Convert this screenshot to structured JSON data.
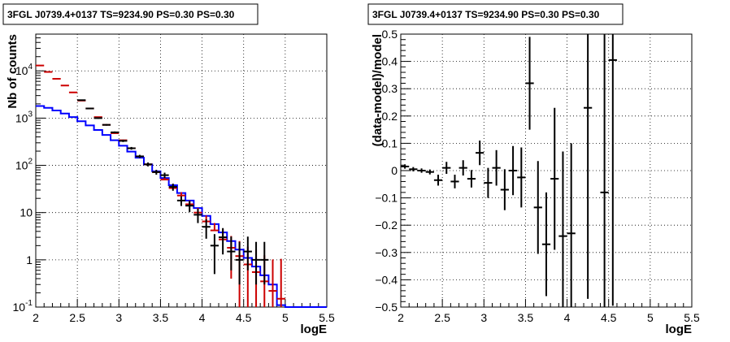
{
  "chart_data": [
    {
      "type": "line",
      "title": "3FGL J0739.4+0137 TS=9234.90 PS=0.30 PS=0.30",
      "xlabel": "logE",
      "ylabel": "Nb of counts",
      "xlim": [
        2,
        5.5
      ],
      "ylim": [
        0.1,
        60000
      ],
      "yscale": "log",
      "grid": true,
      "x_ticks": [
        "2",
        "2.5",
        "3",
        "3.5",
        "4",
        "4.5",
        "5",
        "5.5"
      ],
      "y_ticks": [
        {
          "base": "10",
          "exp": "-1",
          "value": 0.1
        },
        {
          "base": "1",
          "exp": "",
          "value": 1
        },
        {
          "base": "10",
          "exp": "",
          "value": 10
        },
        {
          "base": "10",
          "exp": "2",
          "value": 100
        },
        {
          "base": "10",
          "exp": "3",
          "value": 1000
        },
        {
          "base": "10",
          "exp": "4",
          "value": 10000
        }
      ],
      "bin_width": 0.1,
      "series": [
        {
          "color": "#0000ff",
          "style": "histogram",
          "x": [
            2.05,
            2.15,
            2.25,
            2.35,
            2.45,
            2.55,
            2.65,
            2.75,
            2.85,
            2.95,
            3.05,
            3.15,
            3.25,
            3.35,
            3.45,
            3.55,
            3.65,
            3.75,
            3.85,
            3.95,
            4.05,
            4.15,
            4.25,
            4.35,
            4.45,
            4.55,
            4.65,
            4.75,
            4.85,
            4.95,
            5.05,
            5.15,
            5.25,
            5.35,
            5.45
          ],
          "y": [
            1800,
            1650,
            1450,
            1250,
            1050,
            860,
            700,
            560,
            440,
            340,
            260,
            195,
            145,
            105,
            75,
            54,
            38,
            26,
            18,
            12.5,
            8.5,
            5.7,
            3.8,
            2.5,
            1.65,
            1.1,
            0.72,
            0.47,
            0.3,
            0.11,
            0.1,
            0.1,
            0.1,
            0.1,
            0.1
          ]
        },
        {
          "color": "#cc0000",
          "style": "errorbars",
          "x": [
            2.05,
            2.15,
            2.25,
            2.35,
            2.45,
            2.55,
            2.65,
            2.75,
            2.85,
            2.95,
            3.05,
            3.15,
            3.25,
            3.35,
            3.45,
            3.55,
            3.65,
            3.75,
            3.85,
            3.95,
            4.05,
            4.15,
            4.25,
            4.35,
            4.45,
            4.55,
            4.65,
            4.75,
            4.85,
            4.95
          ],
          "y": [
            13000,
            9500,
            6800,
            4900,
            3500,
            2350,
            1600,
            1050,
            720,
            480,
            340,
            230,
            155,
            105,
            72,
            50,
            33,
            23,
            15,
            10,
            6.5,
            4.2,
            2.7,
            1.8,
            1.2,
            0.8,
            0.55,
            0.35,
            0.22,
            0.15
          ],
          "err_low": [
            0,
            0,
            0,
            0,
            0,
            0,
            0,
            0,
            0,
            0,
            0,
            0,
            0,
            0,
            0,
            0,
            0,
            0,
            0,
            0,
            0,
            0,
            0,
            1.4,
            1.1,
            0.7,
            0.5,
            0.33,
            0.2,
            0.14
          ],
          "err_high": [
            0,
            0,
            0,
            0,
            0,
            0,
            0,
            0,
            0,
            0,
            0,
            0,
            0,
            0,
            2.5,
            5,
            5,
            4,
            3,
            2.5,
            2.2,
            1.8,
            1.8,
            1.4,
            1.3,
            1.1,
            1.1,
            0.9,
            0.8,
            0.9
          ]
        },
        {
          "color": "#000000",
          "style": "errorbars",
          "x": [
            2.55,
            2.65,
            2.75,
            2.85,
            2.95,
            3.05,
            3.15,
            3.25,
            3.35,
            3.45,
            3.55,
            3.65,
            3.75,
            3.85,
            3.95,
            4.05,
            4.15,
            4.25,
            4.35,
            4.45,
            4.55,
            4.65,
            4.75
          ],
          "y": [
            2400,
            1600,
            1000,
            720,
            500,
            330,
            230,
            155,
            105,
            72,
            62,
            35,
            18,
            14,
            9,
            5,
            2,
            3,
            1.5,
            1,
            1.5,
            1,
            1
          ],
          "err_low": [
            50,
            40,
            32,
            27,
            22,
            18,
            15,
            12,
            10,
            8.5,
            8,
            6,
            4.2,
            3.7,
            3,
            2.2,
            1.5,
            1.7,
            0.9,
            0.7,
            0.9,
            0.7,
            0.7
          ],
          "err_high": [
            50,
            40,
            32,
            27,
            22,
            18,
            15,
            12,
            10,
            8.5,
            8,
            6,
            4.2,
            3.7,
            3,
            2.2,
            1.5,
            1.7,
            1.6,
            1.4,
            1.6,
            1.4,
            1.4
          ]
        }
      ]
    },
    {
      "type": "scatter",
      "title": "3FGL J0739.4+0137 TS=9234.90 PS=0.30 PS=0.30",
      "xlabel": "logE",
      "ylabel": "(data-model)/model",
      "xlim": [
        2,
        5.5
      ],
      "ylim": [
        -0.5,
        0.5
      ],
      "grid": true,
      "x_ticks": [
        "2",
        "2.5",
        "3",
        "3.5",
        "4",
        "4.5",
        "5",
        "5.5"
      ],
      "y_ticks": [
        "−0.5",
        "−0.4",
        "−0.3",
        "−0.2",
        "−0.1",
        "0",
        "0.1",
        "0.2",
        "0.3",
        "0.4",
        "0.5"
      ],
      "bin_width": 0.1,
      "series": [
        {
          "color": "#000000",
          "style": "errorbars",
          "x": [
            2.05,
            2.15,
            2.25,
            2.35,
            2.45,
            2.55,
            2.65,
            2.75,
            2.85,
            2.95,
            3.05,
            3.15,
            3.25,
            3.35,
            3.45,
            3.55,
            3.65,
            3.75,
            3.85,
            3.95,
            4.05,
            4.25,
            4.45,
            4.55
          ],
          "y": [
            0.015,
            0.005,
            0.0,
            -0.005,
            -0.035,
            0.01,
            -0.04,
            0.01,
            -0.03,
            0.065,
            -0.045,
            0.01,
            -0.07,
            0.0,
            -0.025,
            0.32,
            -0.135,
            -0.27,
            -0.03,
            -0.24,
            -0.23,
            0.23,
            -0.08,
            0.405
          ],
          "err": [
            0.008,
            0.008,
            0.008,
            0.009,
            0.02,
            0.022,
            0.025,
            0.028,
            0.032,
            0.045,
            0.055,
            0.065,
            0.075,
            0.09,
            0.11,
            0.17,
            0.17,
            0.19,
            0.26,
            0.31,
            0.33,
            0.7,
            0.8,
            0.9
          ]
        }
      ]
    }
  ]
}
